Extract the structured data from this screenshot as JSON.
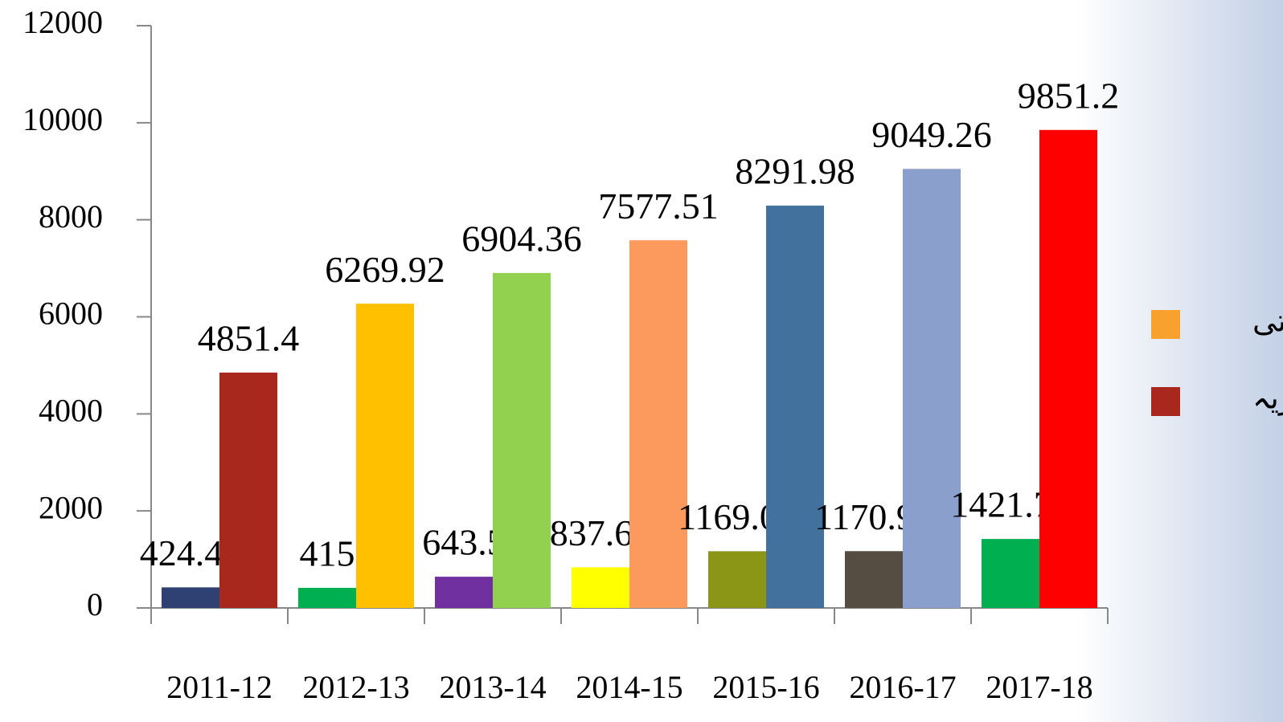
{
  "chart_data": {
    "type": "bar",
    "categories": [
      "2011-12",
      "2012-13",
      "2013-14",
      "2014-15",
      "2015-16",
      "2016-17",
      "2017-18"
    ],
    "series": [
      {
        "name": "ترقیاتی",
        "color": "#f9a12e",
        "values": [
          424.47,
          415,
          643.5,
          837.67,
          1169.09,
          1170.93,
          1421.74
        ],
        "colors": [
          "#2e4172",
          "#00b050",
          "#7030a0",
          "#ffff00",
          "#8b9516",
          "#564d42",
          "#00b050"
        ]
      },
      {
        "name": "جاریہ",
        "color": "#a9281e",
        "values": [
          4851.4,
          6269.92,
          6904.36,
          7577.51,
          8291.98,
          9049.26,
          9851.2
        ],
        "colors": [
          "#a9281e",
          "#ffc000",
          "#92d050",
          "#fb9a5c",
          "#41719c",
          "#8a9fcc",
          "#ff0000"
        ]
      }
    ],
    "ylim": [
      0,
      12000
    ],
    "yticks": [
      0,
      2000,
      4000,
      6000,
      8000,
      10000,
      12000
    ],
    "legend": "right"
  }
}
